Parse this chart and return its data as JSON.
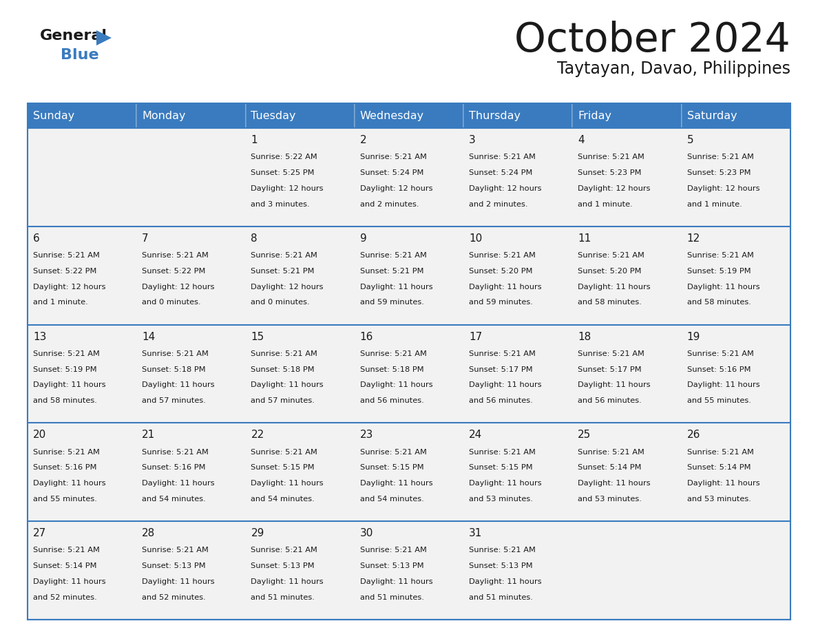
{
  "title": "October 2024",
  "subtitle": "Taytayan, Davao, Philippines",
  "header_bg": "#3a7bbf",
  "header_text": "#ffffff",
  "cell_bg": "#f2f2f2",
  "cell_border_color": "#3a7bbf",
  "text_color": "#1a1a1a",
  "days_of_week": [
    "Sunday",
    "Monday",
    "Tuesday",
    "Wednesday",
    "Thursday",
    "Friday",
    "Saturday"
  ],
  "calendar_data": [
    [
      {
        "day": "",
        "sunrise": "",
        "sunset": "",
        "daylight": ""
      },
      {
        "day": "",
        "sunrise": "",
        "sunset": "",
        "daylight": ""
      },
      {
        "day": "1",
        "sunrise": "5:22 AM",
        "sunset": "5:25 PM",
        "daylight": "12 hours and 3 minutes."
      },
      {
        "day": "2",
        "sunrise": "5:21 AM",
        "sunset": "5:24 PM",
        "daylight": "12 hours and 2 minutes."
      },
      {
        "day": "3",
        "sunrise": "5:21 AM",
        "sunset": "5:24 PM",
        "daylight": "12 hours and 2 minutes."
      },
      {
        "day": "4",
        "sunrise": "5:21 AM",
        "sunset": "5:23 PM",
        "daylight": "12 hours and 1 minute."
      },
      {
        "day": "5",
        "sunrise": "5:21 AM",
        "sunset": "5:23 PM",
        "daylight": "12 hours and 1 minute."
      }
    ],
    [
      {
        "day": "6",
        "sunrise": "5:21 AM",
        "sunset": "5:22 PM",
        "daylight": "12 hours and 1 minute."
      },
      {
        "day": "7",
        "sunrise": "5:21 AM",
        "sunset": "5:22 PM",
        "daylight": "12 hours and 0 minutes."
      },
      {
        "day": "8",
        "sunrise": "5:21 AM",
        "sunset": "5:21 PM",
        "daylight": "12 hours and 0 minutes."
      },
      {
        "day": "9",
        "sunrise": "5:21 AM",
        "sunset": "5:21 PM",
        "daylight": "11 hours and 59 minutes."
      },
      {
        "day": "10",
        "sunrise": "5:21 AM",
        "sunset": "5:20 PM",
        "daylight": "11 hours and 59 minutes."
      },
      {
        "day": "11",
        "sunrise": "5:21 AM",
        "sunset": "5:20 PM",
        "daylight": "11 hours and 58 minutes."
      },
      {
        "day": "12",
        "sunrise": "5:21 AM",
        "sunset": "5:19 PM",
        "daylight": "11 hours and 58 minutes."
      }
    ],
    [
      {
        "day": "13",
        "sunrise": "5:21 AM",
        "sunset": "5:19 PM",
        "daylight": "11 hours and 58 minutes."
      },
      {
        "day": "14",
        "sunrise": "5:21 AM",
        "sunset": "5:18 PM",
        "daylight": "11 hours and 57 minutes."
      },
      {
        "day": "15",
        "sunrise": "5:21 AM",
        "sunset": "5:18 PM",
        "daylight": "11 hours and 57 minutes."
      },
      {
        "day": "16",
        "sunrise": "5:21 AM",
        "sunset": "5:18 PM",
        "daylight": "11 hours and 56 minutes."
      },
      {
        "day": "17",
        "sunrise": "5:21 AM",
        "sunset": "5:17 PM",
        "daylight": "11 hours and 56 minutes."
      },
      {
        "day": "18",
        "sunrise": "5:21 AM",
        "sunset": "5:17 PM",
        "daylight": "11 hours and 56 minutes."
      },
      {
        "day": "19",
        "sunrise": "5:21 AM",
        "sunset": "5:16 PM",
        "daylight": "11 hours and 55 minutes."
      }
    ],
    [
      {
        "day": "20",
        "sunrise": "5:21 AM",
        "sunset": "5:16 PM",
        "daylight": "11 hours and 55 minutes."
      },
      {
        "day": "21",
        "sunrise": "5:21 AM",
        "sunset": "5:16 PM",
        "daylight": "11 hours and 54 minutes."
      },
      {
        "day": "22",
        "sunrise": "5:21 AM",
        "sunset": "5:15 PM",
        "daylight": "11 hours and 54 minutes."
      },
      {
        "day": "23",
        "sunrise": "5:21 AM",
        "sunset": "5:15 PM",
        "daylight": "11 hours and 54 minutes."
      },
      {
        "day": "24",
        "sunrise": "5:21 AM",
        "sunset": "5:15 PM",
        "daylight": "11 hours and 53 minutes."
      },
      {
        "day": "25",
        "sunrise": "5:21 AM",
        "sunset": "5:14 PM",
        "daylight": "11 hours and 53 minutes."
      },
      {
        "day": "26",
        "sunrise": "5:21 AM",
        "sunset": "5:14 PM",
        "daylight": "11 hours and 53 minutes."
      }
    ],
    [
      {
        "day": "27",
        "sunrise": "5:21 AM",
        "sunset": "5:14 PM",
        "daylight": "11 hours and 52 minutes."
      },
      {
        "day": "28",
        "sunrise": "5:21 AM",
        "sunset": "5:13 PM",
        "daylight": "11 hours and 52 minutes."
      },
      {
        "day": "29",
        "sunrise": "5:21 AM",
        "sunset": "5:13 PM",
        "daylight": "11 hours and 51 minutes."
      },
      {
        "day": "30",
        "sunrise": "5:21 AM",
        "sunset": "5:13 PM",
        "daylight": "11 hours and 51 minutes."
      },
      {
        "day": "31",
        "sunrise": "5:21 AM",
        "sunset": "5:13 PM",
        "daylight": "11 hours and 51 minutes."
      },
      {
        "day": "",
        "sunrise": "",
        "sunset": "",
        "daylight": ""
      },
      {
        "day": "",
        "sunrise": "",
        "sunset": "",
        "daylight": ""
      }
    ]
  ]
}
